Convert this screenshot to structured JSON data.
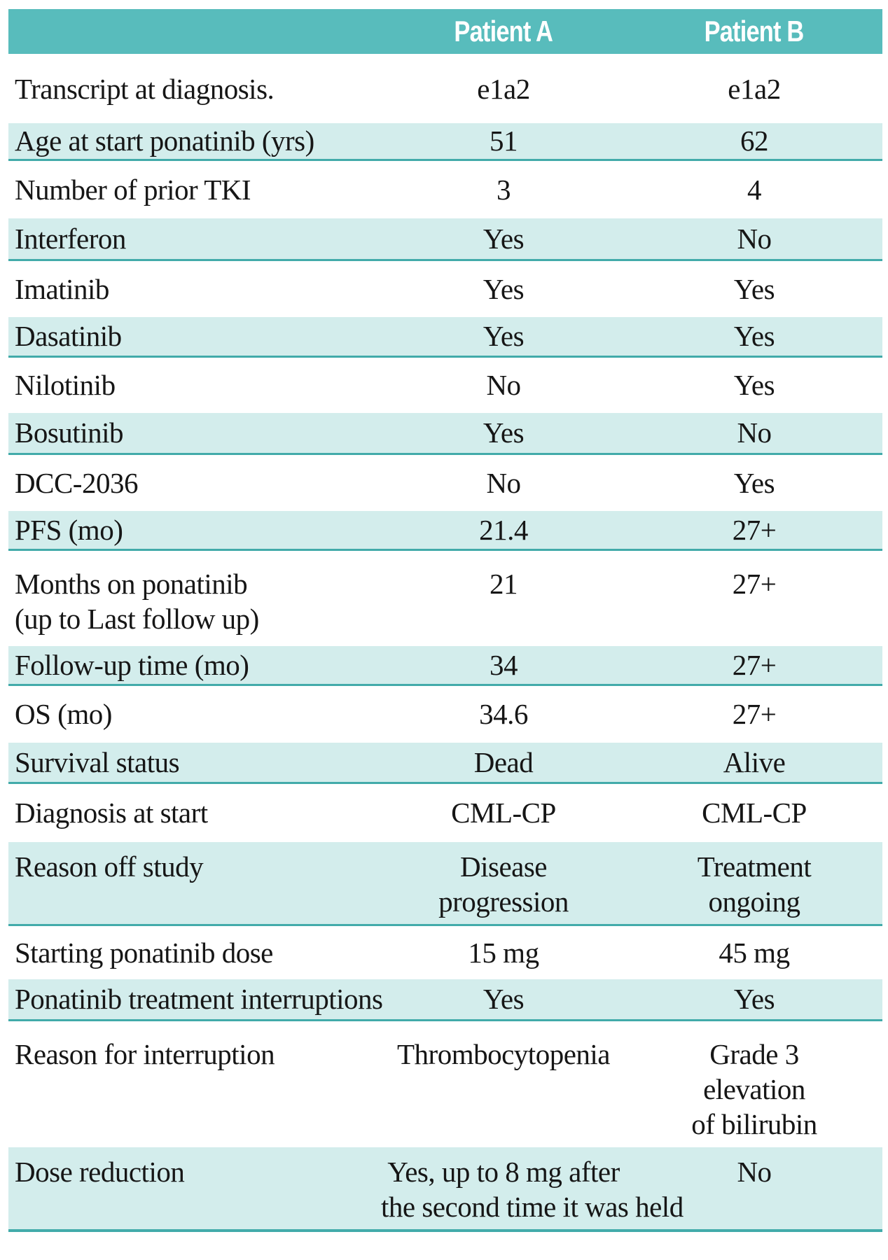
{
  "table": {
    "columns": {
      "a": "Patient A",
      "b": "Patient B"
    },
    "rows": [
      {
        "label": "Transcript at diagnosis.",
        "a": "e1a2",
        "b": "e1a2",
        "shade": false
      },
      {
        "label": "Age at start ponatinib (yrs)",
        "a": "51",
        "b": "62",
        "shade": true
      },
      {
        "label": "Number of prior TKI",
        "a": "3",
        "b": "4",
        "shade": false
      },
      {
        "label": "Interferon",
        "a": "Yes",
        "b": "No",
        "shade": true
      },
      {
        "label": "Imatinib",
        "a": "Yes",
        "b": "Yes",
        "shade": false
      },
      {
        "label": "Dasatinib",
        "a": "Yes",
        "b": "Yes",
        "shade": true
      },
      {
        "label": "Nilotinib",
        "a": "No",
        "b": "Yes",
        "shade": false
      },
      {
        "label": "Bosutinib",
        "a": "Yes",
        "b": "No",
        "shade": true
      },
      {
        "label": "DCC-2036",
        "a": "No",
        "b": "Yes",
        "shade": false
      },
      {
        "label": "PFS (mo)",
        "a": "21.4",
        "b": "27+",
        "shade": true
      },
      {
        "label": "Months on ponatinib\n(up to Last follow up)",
        "a": "21",
        "b": "27+",
        "shade": false
      },
      {
        "label": "Follow-up time (mo)",
        "a": "34",
        "b": "27+",
        "shade": true
      },
      {
        "label": "OS (mo)",
        "a": "34.6",
        "b": "27+",
        "shade": false
      },
      {
        "label": "Survival status",
        "a": "Dead",
        "b": "Alive",
        "shade": true
      },
      {
        "label": "Diagnosis at start",
        "a": "CML-CP",
        "b": "CML-CP",
        "shade": false
      },
      {
        "label": "Reason off study",
        "a": "Disease\nprogression",
        "b": "Treatment\nongoing",
        "shade": true
      },
      {
        "label": "Starting ponatinib dose",
        "a": "15 mg",
        "b": "45 mg",
        "shade": false
      },
      {
        "label": "Ponatinib treatment interruptions",
        "a": "Yes",
        "b": "Yes",
        "shade": true
      },
      {
        "label": "Reason for interruption",
        "a": "Thrombocytopenia",
        "b": "Grade 3\nelevation\nof bilirubin",
        "shade": false
      },
      {
        "label": "Dose reduction",
        "a": "Yes, up to 8 mg after\nthe second time it was held",
        "b": "No",
        "shade": true
      }
    ],
    "colors": {
      "header_bg": "#58bcbc",
      "header_text": "#ffffff",
      "shade_bg": "#d3edec",
      "shade_border": "#42abaa",
      "text": "#161616"
    }
  }
}
